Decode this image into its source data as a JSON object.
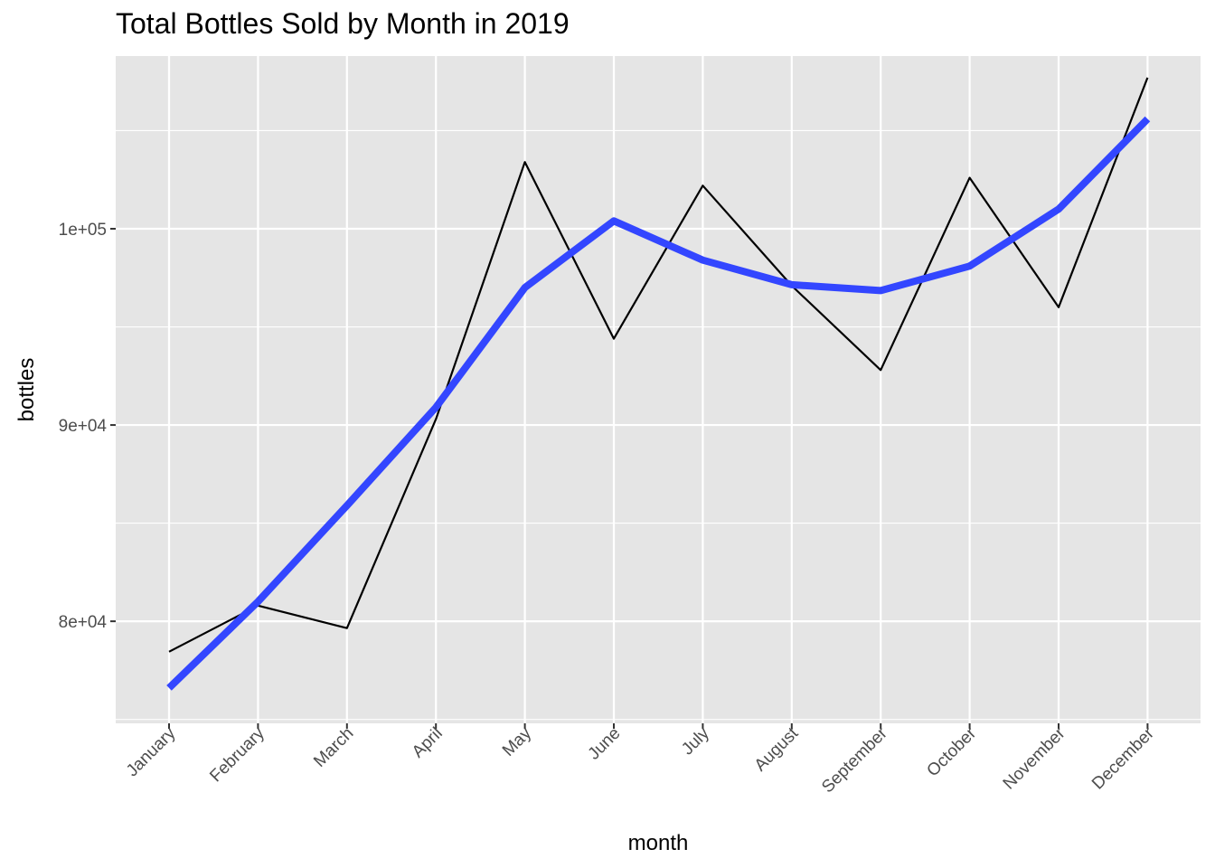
{
  "chart_data": {
    "type": "line",
    "title": "Total Bottles Sold by Month in 2019",
    "xlabel": "month",
    "ylabel": "bottles",
    "categories": [
      "January",
      "February",
      "March",
      "April",
      "May",
      "June",
      "July",
      "August",
      "September",
      "October",
      "November",
      "December"
    ],
    "ylim": [
      74800,
      108800
    ],
    "yticks": [
      80000,
      90000,
      100000
    ],
    "ytick_labels": [
      "8e+04",
      "9e+04",
      "1e+05"
    ],
    "grid": true,
    "legend": "none",
    "series": [
      {
        "role": "observed",
        "color": "#000000",
        "values": [
          78450,
          80800,
          79650,
          90300,
          103400,
          94400,
          102200,
          97100,
          92800,
          102600,
          96000,
          107700
        ]
      },
      {
        "role": "smoothed",
        "color": "#3346ff",
        "values": [
          76600,
          81000,
          85900,
          90900,
          97000,
          100400,
          98400,
          97150,
          96850,
          98100,
          101000,
          105600
        ]
      }
    ],
    "colors": {
      "panel": "#e5e5e5",
      "grid": "#ffffff",
      "tick": "#333333"
    }
  }
}
